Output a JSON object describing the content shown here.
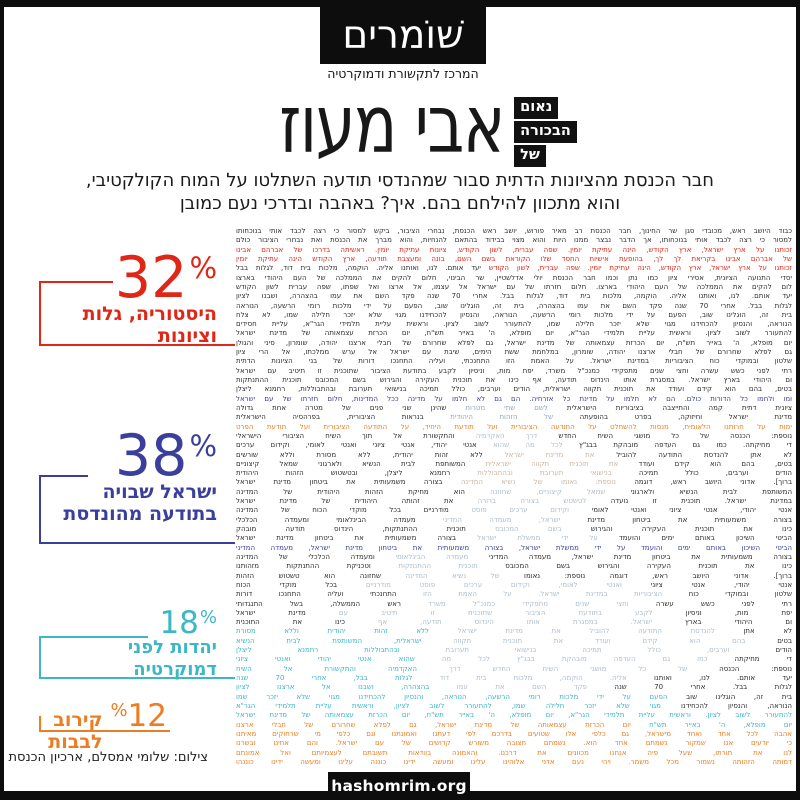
{
  "brand": {
    "logo": "שׁוֹמרים",
    "tagline": "המרכז לתקשורת ודמוקרטיה",
    "site": "hashomrim.org"
  },
  "header": {
    "kicker": [
      "נאום",
      "הבכורה",
      "של"
    ],
    "title": "אבי מעוז",
    "subtitle_line1": "חבר הכנסת מהציונות הדתית סבור שמהנדסי תודעה השתלטו על המוח הקולקטיבי,",
    "subtitle_line2": "והוא מתכוון להילחם בהם. איך? באהבה ובדרכי נעם כמובן"
  },
  "stats": [
    {
      "value": "32",
      "unit": "%",
      "label_lines": [
        "היסטוריה, גלות וציונות"
      ],
      "color": "#e02617"
    },
    {
      "value": "38",
      "unit": "%",
      "label_lines": [
        "ישראל שבויה",
        "בתודעה מהונדסת"
      ],
      "color": "#3b3f9c"
    },
    {
      "value": "18",
      "unit": "%",
      "label_lines": [
        "יהדות לפני דמוקרטיה"
      ],
      "color": "#3db6c6"
    },
    {
      "value": "12",
      "unit": "%",
      "label_lines": [
        "קירוב לבבות"
      ],
      "color": "#ed7d23"
    }
  ],
  "credit": "צילום: שלומי אמסלם, ארכיון הכנסת",
  "colors": {
    "red": "#e02617",
    "blue": "#3b3f9c",
    "teal": "#3db6c6",
    "orange": "#ed7d23",
    "portrait_light": "#aebecd",
    "portrait_warm": "#c9b7a4",
    "ink": "#2d2d2d",
    "frame": "#0d0d0d"
  },
  "body": {
    "lines": [
      {
        "c": "k",
        "t": "כבוד היושב ראש, מכובדי סגן שר החינוך, חבר הכנסת רב מאיר פורוש, יושב ראש הכנסת, נבחרי הציבור, ביקש למסור כי רצה לכבד אותי בנוכחותו"
      },
      {
        "c": "k",
        "t": "למסור כי רצה לכבד אותי בנוכחותו, אך הדבר נבצר ממנו היות והוא מצוי בבידוד בהתאם להנחיות, והוא מברך את הכנסת ואת נבחרי הציבור כולם"
      },
      {
        "c": "r",
        "t": "זכותנו על ארץ ישראל, ארץ הקודש, הינה עתיקת יומין. שפה עברית, לשון הקודש, ציונות עתיקת יומין. ראשיתה בדרכו של אברהם אבינו"
      },
      {
        "c": "r",
        "t": "של אברהם אבינו בקריאת לך לך, בהופעת אישיות החסד שלו הקוראת בשם השם, בונה ומעצבת תודעה, ארץ הקודש הינה עתיקת יומין"
      },
      {
        "s": [
          [
            "r",
            "זכותנו על ארץ ישראל, ארץ הקודש, הינה עתיקת יומין. שפה עברית, לשון הקודש"
          ],
          [
            "k",
            "יעד אותם. לנו, ואותנו אליה. הוקמה, מלכות בית דוד, לגלות בבל"
          ]
        ]
      },
      {
        "c": "k",
        "t": "יסדי התנועה הציונית, אסירי ציון כמו נתן וכמו חבר הכנסת יולי אדלשטיין, שר הבינוי, חלום להקים את הממלכה של העם היהודי בארצו"
      },
      {
        "c": "k",
        "t": "לום להקים את הממלכה של העם היהודי בארצו. חלום חזרתו של עם ישראל אל עצמו, אל ארצו ואל שפתו, שפה עברית לשון הקודש"
      },
      {
        "c": "k",
        "t": "יעד אותם. לנו, ואותנו אליה. הוקמה, מלכות בית דוד, לגלות בבל. אחרי 70 שנה פקד השם את עמו בהצהרה, ושבנו לציון"
      },
      {
        "c": "k",
        "t": "לגלות בבל. אחרי 70 שנה פקד השם את עמו בהצהרה, בית זה, הוגלינו שוב, הפעם על ידי מלכות רומי הרשעה, הנוראה"
      },
      {
        "c": "k",
        "t": "בית זה, הוגלינו שוב, הפעם על ידי מלכות רומי הרשעה, הנוראה, והנסיון להכחידנו מגוי שלא יזכר חלילה שמו, לא צלח"
      },
      {
        "c": "k",
        "t": "הנוראה, והנסיון להכחידנו מגוי שלא יזכר חלילה שמו, להתעורר לשוב לציון. וראשית עליית תלמידי הגר\"א, עליית חסידים"
      },
      {
        "c": "k",
        "t": "להתעורר לשוב לציון. וראשית עליית תלמידי הגר\"א, יום מופלא, ה' באייר תש\"ח, יום הכרזת עצמאותה של מדינת ישראל"
      },
      {
        "c": "k",
        "t": "יום מופלא, ה' באייר תש\"ח, יום הכרזת עצמאותה של מדינת ישראל, גם לפלא שחרורם של חבלי ארצנו יהודה, שומרון, סיני והגולן"
      },
      {
        "c": "k",
        "t": "גם לפלא שחרורם של חבלי ארצנו יהודה, שומרון, במלחמת ששת הימים, שיבת עם ישראל אל ערש ממלכתו, אל הרי ציון"
      },
      {
        "c": "k",
        "t": "שלטון ובמוקדי כוח הציבוריות במדינת ישראל. על האמת הזו התחנכתי, ועליה התחנכו דורות של בני הציונות הדתית"
      },
      {
        "c": "k",
        "t": "רתי לפני כשש עשרה וחצי שנים מתפקידי כמנכ\"ל משרד, יפת מות, וניסיון לקבע בתודעת הציבור שתוכנית זו תיטיב עם ישראל"
      },
      {
        "c": "k",
        "t": "ום היהודי בארץ ישראל. במסגרת אותו הינדוס תודעה, אף כינו את תוכנית העקירה והגירוש בשם המכובס תוכנית ההתנתקות"
      },
      {
        "c": "k",
        "t": "בטים, בהם הוא קידם ועודד את תוכנית תקווה ישראלית, הודים וערבים, כולל תמיכה בנישואי תערובת ובהתבוללות, רחמנא ליצלן"
      },
      {
        "c": "b",
        "t": "ומו ולחמו כל הדורות כולם. הם לא חלמו על מדינת כל אזרחיה. הם גם לא חלמו על מדינה ככל המדינות, חלום חזרתו של עם ישראל"
      },
      {
        "s": [
          [
            "k",
            "ציונית דתית קמה והתייצבה בציבוריות הישראלית"
          ],
          [
            "lc",
            "לשם שתי מטרות"
          ],
          [
            "k",
            "שהינן שני פנים של מטרה אחת גדולה"
          ]
        ]
      },
      {
        "s": [
          [
            "k",
            "מדינת ישראל וחיזוקה, בפרט בהופעתה"
          ],
          [
            "lc",
            "של הזהות היהודית"
          ],
          [
            "k",
            "בנראות הציבורית, בפרהסיה הישראלית"
          ]
        ]
      },
      {
        "c": "o",
        "t": "ימות על חרותנו הלאומית, מנסות להשתלט על התודעה הציבורית ועל תודעת היחיד, על התודעה הציבורית ועל תודעת הפרט"
      },
      {
        "s": [
          [
            "k",
            "נוספת: הכנסה של כל מושגי השיח החדש"
          ],
          [
            "la",
            "דרך האקדמיה"
          ],
          [
            "k",
            "והתקשורת אל תוך השיח הציבורי הישראלי"
          ]
        ]
      },
      {
        "s": [
          [
            "k",
            "די מחיקתה. כמו גם העדפה מובהקת בבג\"ץ"
          ],
          [
            "la",
            "לכל מה שהוא"
          ],
          [
            "k",
            "אנטי יהודי, אנטי ציוני ואנטי לאומי, וקידום ערכים"
          ]
        ]
      },
      {
        "s": [
          [
            "k",
            "לא אתן להנדסת התודעה להוביל"
          ],
          [
            "lb",
            "את מדינת ישראל"
          ],
          [
            "k",
            "ללא זהות יהודית, ללא מסורת וללא שורשים"
          ]
        ]
      },
      {
        "s": [
          [
            "k",
            "בטים, בהם הוא קידם ועודד"
          ],
          [
            "lb",
            "את תוכנית תקווה ישראלית"
          ],
          [
            "k",
            "המשותפת לבית הנשיא ולארגוני שמאל קיצוניים"
          ]
        ]
      },
      {
        "s": [
          [
            "k",
            "הודים וערבים, כולל תמיכה"
          ],
          [
            "lb",
            "בנישואי תערובת ובהתבוללות"
          ],
          [
            "k",
            "רחמנא ליצלן, ובטשטוש הזהות היהודית"
          ]
        ]
      },
      {
        "s": [
          [
            "k",
            "ברוך]. אדוני היושב ראש, דוגמה"
          ],
          [
            "lb",
            "נוספת: נאומו של נשיא המדינה"
          ],
          [
            "k",
            "בצורה משמעותית את ביטחון מדינת ישראל"
          ]
        ]
      },
      {
        "s": [
          [
            "k",
            "המשותפת לבית הנשיא ולארגוני"
          ],
          [
            "la",
            "שמאל קיצוניים, שחזונה"
          ],
          [
            "k",
            "הוא מחיקת הזהות היהודית של המדינה"
          ]
        ]
      },
      {
        "s": [
          [
            "k",
            "במדינת ישראל. תוכנית זו נועדה"
          ],
          [
            "la",
            "לטשטש בצורה ברורה"
          ],
          [
            "k",
            "את זהותה היהודית של מדינת ישראל"
          ]
        ]
      },
      {
        "s": [
          [
            "k",
            "אנטי יהודי, אנטי ציוני ואנטי לאומי"
          ],
          [
            "la",
            "וקידום ערכים פוסט"
          ],
          [
            "k",
            "מודרניים בכל מוקדי הכוח של המדינה"
          ]
        ]
      },
      {
        "s": [
          [
            "k",
            "בצורה משמעותית את ביטחון מדינת"
          ],
          [
            "la",
            "ישראל, מעמדה המדיני"
          ],
          [
            "k",
            "מעמדה הבינלאומי ומעמדה הכלכלי"
          ]
        ]
      },
      {
        "s": [
          [
            "k",
            "כינו את תוכנית העקירה והגירוש"
          ],
          [
            "la",
            "בשם המכובס"
          ],
          [
            "k",
            "תוכנית ההתנתקות, הינדוס תודעה מובהק"
          ]
        ]
      },
      {
        "s": [
          [
            "k",
            "הביטי השיכון באותם ימים והועמד"
          ],
          [
            "la",
            "על ידי ממשלת ישראל"
          ],
          [
            "k",
            "בצורה משמעותית את ביטחון מדינת ישראל"
          ]
        ]
      },
      {
        "c": "b",
        "t": "הביטי השיכון באותם ימים והועמד על ידי ממשלת ישראל, בצורה משמעותית את ביטחון מדינת ישראל, מעמדה המדיני"
      },
      {
        "s": [
          [
            "k",
            "בצורה משמעותית את ביטחון מדינת ישראל, מעמדה המדיני"
          ],
          [
            "la",
            "מעמדה הבינלאומי"
          ],
          [
            "k",
            "ומעמדה הכלכלי של המדינה"
          ]
        ]
      },
      {
        "s": [
          [
            "k",
            "כינו את תוכנית העקירה והגירוש בשם המכובס"
          ],
          [
            "la",
            "תוכנית ההתנתקות"
          ],
          [
            "k",
            "וטכניקת ההתנתקות מזהותנו"
          ]
        ]
      },
      {
        "s": [
          [
            "k",
            "ברוך]. אדוני היושב ראש, דוגמה נוספת: נאומו"
          ],
          [
            "la",
            "של נשיא המדינה"
          ],
          [
            "k",
            "שחזונה הוא טשטוש הזהות"
          ]
        ]
      },
      {
        "s": [
          [
            "k",
            "אנטי יהודי, אנטי ציוני"
          ],
          [
            "la",
            "ואנטי לאומי, וקידום ערכים פוסט מודרניים"
          ],
          [
            "k",
            "בכל מוקדי הכוח"
          ]
        ]
      },
      {
        "s": [
          [
            "k",
            "שלטון ובמוקדי כוח"
          ],
          [
            "la",
            "הציבוריות במדינת ישראל. על האמת הזו"
          ],
          [
            "k",
            "התחנכתי ועליה התחנכו דורות"
          ]
        ]
      },
      {
        "s": [
          [
            "k",
            "רתי לפני כשש עשרה"
          ],
          [
            "la",
            "וחצי שנים מתפקידי כמנכ\"ל משרד"
          ],
          [
            "k",
            "ראש הממשלה, בשל התנגדותי"
          ]
        ]
      },
      {
        "s": [
          [
            "k",
            "יפת מות, וניסיון"
          ],
          [
            "la",
            "לקבע בתודעת הציבור שתוכנית זו תיטיב עם"
          ],
          [
            "k",
            "מדינת ישראל"
          ]
        ]
      },
      {
        "s": [
          [
            "k",
            "ום היהודי בארץ"
          ],
          [
            "la",
            "ישראל. במסגרת אותו הינדוס תודעה, אף"
          ],
          [
            "k",
            "כינו את התוכנית"
          ]
        ]
      },
      {
        "s": [
          [
            "k",
            "לא אתן"
          ],
          [
            "la",
            "להנדסת התודעה להוביל את מדינת ישראל"
          ],
          [
            "t",
            "ללא זהות יהודית וללא מסורת"
          ]
        ]
      },
      {
        "s": [
          [
            "k",
            "בטים"
          ],
          [
            "la",
            "בהם הוא קידם ועודד את תוכנית תקווה"
          ],
          [
            "t",
            "ישראלית, המשותפת לבית הנשיא"
          ]
        ]
      },
      {
        "s": [
          [
            "k",
            "הודים"
          ],
          [
            "la",
            "וערבים, כולל תמיכה בנישואי תערובת"
          ],
          [
            "t",
            "ובהתבוללות רחמנא ליצלן"
          ]
        ]
      },
      {
        "s": [
          [
            "k",
            "די מחיקתה"
          ],
          [
            "la",
            "כמו גם העדפה מובהקת בבג\"ץ לכל מה"
          ],
          [
            "t",
            "שהוא אנטי יהודי ואנטי ציוני"
          ]
        ]
      },
      {
        "s": [
          [
            "k",
            "נוספת: הכנסה"
          ],
          [
            "la",
            "של כל מושגי השיח החדש דרך"
          ],
          [
            "t",
            "האקדמיה והתקשורת אל השיח"
          ]
        ]
      },
      {
        "s": [
          [
            "k",
            "יעד אותם. לנו, ואותנו"
          ],
          [
            "la",
            "אליה. הוקמה, מלכות בית דוד"
          ],
          [
            "t",
            "לגלות בבל, אחרי 70 שנה"
          ]
        ]
      },
      {
        "s": [
          [
            "k",
            "לגלות בבל. אחרי 70 שנה"
          ],
          [
            "la",
            "פקד השם את עמו"
          ],
          [
            "t",
            "בהצהרה, ושבנו אל ארצנו לציון"
          ]
        ]
      },
      {
        "s": [
          [
            "k",
            "בית זה, הוגלינו שוב"
          ],
          [
            "t",
            "הפעם על ידי מלכות רומי הרשעה, הנוראה, והנסיון להכחידנו מגוי שלא יזכר שמו"
          ]
        ]
      },
      {
        "s": [
          [
            "k",
            "הנוראה, והנסיון להכחידנו"
          ],
          [
            "t",
            "מגוי שלא יזכר חלילה שמו, להתעורר לשוב לציון, וראשית עליית תלמידי הגר\"א"
          ]
        ]
      },
      {
        "c": "t",
        "t": "להתעורר לשוב לציון. וראשית עליית תלמידי הגר\"א, יום מופלא, ה' באייר תש\"ח, יום הכרזת עצמאותה של מדינת ישראל"
      },
      {
        "s": [
          [
            "t",
            "יום מופלא, ה' באייר תש\"ח"
          ],
          [
            "o",
            "יום הכרזת עצמאותה של מדינת ישראל, גם לפלא שחרורם של חבלי ארצנו"
          ]
        ]
      },
      {
        "c": "o",
        "t": "אהבה לכל אחד ואחד מישראל, גם כלפי אלו שטועים בדרכם לפי דעתנו ואמונתנו וגם כלפי מי שרחוקים מאיתנו"
      },
      {
        "c": "o",
        "t": "כי יודעים אנו שמקור נשמתם אחד הוא. נשמתם חצובה משורש קדושים של עם ישראל. והם אחינו ובשרנו"
      },
      {
        "c": "o",
        "t": "לנו את תורתו, שעל פיה אנחנו מכוונים את דרכנו. והאמונה בוודאות תשובתם לעצמיותם ואל אמונתם"
      },
      {
        "c": "o",
        "t": "דמותה הזהותה נשמור מכל משמר. ויהי נעם אדני אלוהינו עלינו ומעשה ידינו כוננה עלינו ומעשה ידינו כוננהו"
      }
    ]
  }
}
